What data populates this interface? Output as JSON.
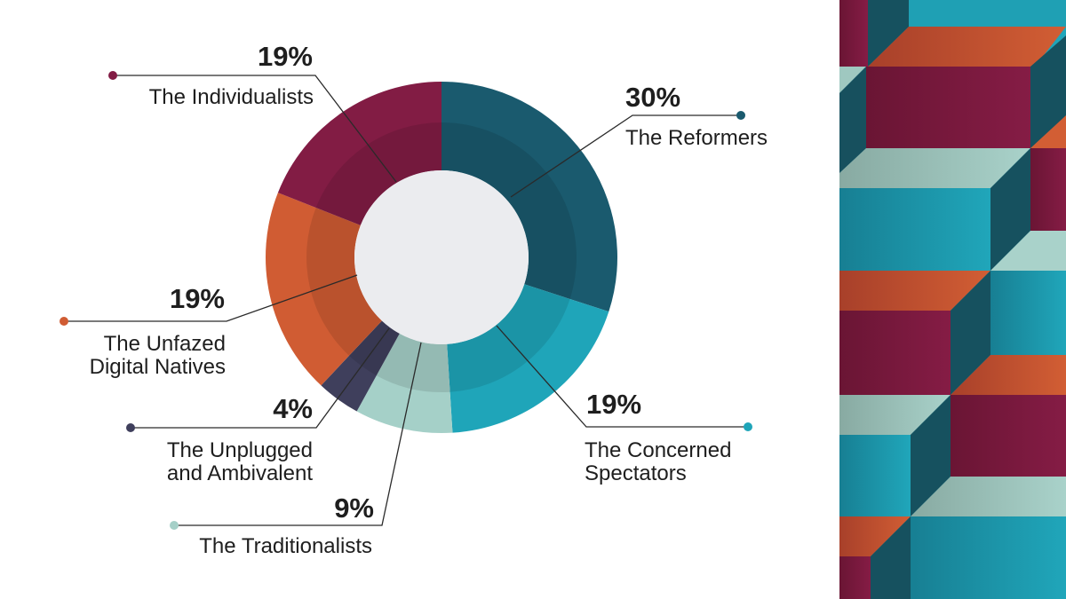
{
  "chart_data": {
    "type": "pie",
    "style": "donut",
    "start_angle_deg": 0,
    "direction": "clockwise",
    "title": "",
    "slices": [
      {
        "label": "The Reformers",
        "value": 30,
        "display": "30%",
        "color": "#1a5a6e"
      },
      {
        "label": "The Concerned Spectators",
        "value": 19,
        "display": "19%",
        "color": "#1fa5b9"
      },
      {
        "label": "The Traditionalists",
        "value": 9,
        "display": "9%",
        "color": "#a5d0c8"
      },
      {
        "label": "The Unplugged and Ambivalent",
        "value": 4,
        "display": "4%",
        "color": "#3f3f5c"
      },
      {
        "label": "The Unfazed Digital Natives",
        "value": 19,
        "display": "19%",
        "color": "#d05c33"
      },
      {
        "label": "The Individualists",
        "value": 19,
        "display": "19%",
        "color": "#821c44"
      }
    ],
    "center_color": "#ebecef"
  },
  "callouts": [
    {
      "pct": "30%",
      "lines": [
        "The Reformers"
      ]
    },
    {
      "pct": "19%",
      "lines": [
        "The Concerned",
        "Spectators"
      ]
    },
    {
      "pct": "9%",
      "lines": [
        "The Traditionalists"
      ]
    },
    {
      "pct": "4%",
      "lines": [
        "The Unplugged",
        "and Ambivalent"
      ]
    },
    {
      "pct": "19%",
      "lines": [
        "The Unfazed",
        "Digital Natives"
      ]
    },
    {
      "pct": "19%",
      "lines": [
        "The Individualists"
      ]
    }
  ],
  "decor": {
    "palette": {
      "teal_dark": "#1a5a6e",
      "teal": "#1fa5b9",
      "mint": "#a5d0c8",
      "orange": "#d05c33",
      "maroon": "#821c44"
    }
  }
}
